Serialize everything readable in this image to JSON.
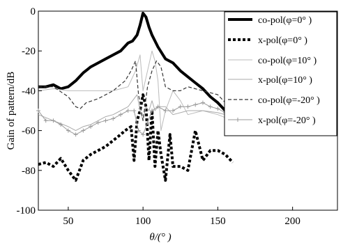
{
  "chart_data": {
    "type": "line",
    "title": "",
    "xlabel": "θ/(° )",
    "ylabel": "Gain of pattern/dB",
    "xlim": [
      30,
      230
    ],
    "ylim": [
      -100,
      0
    ],
    "xticks": [
      50,
      100,
      150,
      200
    ],
    "yticks": [
      0,
      -20,
      -40,
      -60,
      -80,
      -100
    ],
    "grid": false,
    "legend_position": "top-right",
    "series": [
      {
        "name": "co-pol(φ=0°)",
        "color": "#000000",
        "style": "solid-thick",
        "x": [
          30,
          35,
          40,
          45,
          50,
          55,
          60,
          65,
          70,
          75,
          80,
          85,
          90,
          93,
          96,
          98,
          100,
          102,
          104,
          106,
          108,
          110,
          115,
          120,
          125,
          130,
          135,
          140,
          145,
          150,
          155,
          160
        ],
        "y": [
          -38,
          -38,
          -37,
          -39,
          -38,
          -35,
          -31,
          -28,
          -26,
          -24,
          -22,
          -20,
          -16,
          -15,
          -12,
          -7,
          -1,
          -3,
          -8,
          -12,
          -15,
          -18,
          -24,
          -26,
          -30,
          -33,
          -36,
          -39,
          -43,
          -46,
          -50,
          -51
        ]
      },
      {
        "name": "x-pol(φ=0°)",
        "color": "#000000",
        "style": "dotted-thick",
        "x": [
          30,
          35,
          40,
          45,
          50,
          55,
          60,
          65,
          70,
          75,
          80,
          85,
          88,
          92,
          94,
          96,
          98,
          100,
          102,
          104,
          106,
          108,
          110,
          112,
          115,
          118,
          120,
          125,
          130,
          135,
          140,
          145,
          150,
          155,
          160
        ],
        "y": [
          -77,
          -76,
          -78,
          -74,
          -80,
          -85,
          -75,
          -72,
          -70,
          -68,
          -65,
          -62,
          -60,
          -58,
          -75,
          -55,
          -50,
          -42,
          -48,
          -75,
          -50,
          -78,
          -60,
          -72,
          -85,
          -62,
          -78,
          -78,
          -80,
          -60,
          -75,
          -70,
          -70,
          -72,
          -76
        ]
      },
      {
        "name": "co-pol(φ=10°)",
        "color": "#bbbbbb",
        "style": "solid-thin",
        "x": [
          30,
          40,
          50,
          60,
          70,
          80,
          90,
          95,
          98,
          100,
          103,
          106,
          108,
          110,
          112,
          115,
          120,
          125,
          130,
          140,
          150,
          160
        ],
        "y": [
          -40,
          -39,
          -40,
          -40,
          -40,
          -40,
          -38,
          -30,
          -22,
          -40,
          -30,
          -20,
          -25,
          -35,
          -60,
          -50,
          -40,
          -45,
          -52,
          -50,
          -52,
          -55
        ]
      },
      {
        "name": "x-pol(φ=10°)",
        "color": "#aaaaaa",
        "style": "solid-thin",
        "x": [
          30,
          40,
          50,
          55,
          60,
          65,
          70,
          75,
          80,
          85,
          90,
          93,
          96,
          98,
          100,
          102,
          104,
          106,
          108,
          110,
          115,
          120,
          130,
          140,
          150,
          160
        ],
        "y": [
          -52,
          -55,
          -58,
          -60,
          -58,
          -57,
          -55,
          -53,
          -52,
          -50,
          -48,
          -45,
          -42,
          -50,
          -55,
          -48,
          -50,
          -45,
          -50,
          -48,
          -48,
          -52,
          -50,
          -50,
          -51,
          -53
        ]
      },
      {
        "name": "co-pol(φ=-20°)",
        "color": "#333333",
        "style": "dashed",
        "x": [
          30,
          40,
          50,
          55,
          58,
          62,
          70,
          80,
          88,
          92,
          95,
          97,
          100,
          103,
          106,
          109,
          112,
          115,
          120,
          125,
          130,
          140,
          150,
          160
        ],
        "y": [
          -38,
          -38,
          -43,
          -48,
          -49,
          -46,
          -44,
          -40,
          -35,
          -30,
          -25,
          -42,
          -55,
          -38,
          -30,
          -25,
          -28,
          -38,
          -40,
          -40,
          -38,
          -40,
          -42,
          -50
        ]
      },
      {
        "name": "x-pol(φ=-20°)",
        "color": "#999999",
        "style": "plus-markers",
        "x": [
          30,
          35,
          40,
          45,
          50,
          55,
          60,
          65,
          70,
          75,
          80,
          85,
          90,
          94,
          97,
          100,
          103,
          106,
          110,
          115,
          120,
          125,
          130,
          135,
          140,
          145,
          150,
          155,
          160
        ],
        "y": [
          -50,
          -55,
          -55,
          -57,
          -60,
          -62,
          -60,
          -58,
          -56,
          -55,
          -54,
          -52,
          -50,
          -50,
          -60,
          -62,
          -56,
          -50,
          -48,
          -50,
          -50,
          -48,
          -48,
          -47,
          -46,
          -48,
          -49,
          -51,
          -52
        ]
      }
    ]
  },
  "legend": {
    "items": [
      "co-pol(φ=0° )",
      "x-pol(φ=0° )",
      "co-pol(φ=10° )",
      "x-pol(φ=10° )",
      "co-pol(φ=-20° )",
      "x-pol(φ=-20° )"
    ]
  },
  "axes": {
    "xlabel": "θ/(° )",
    "ylabel": "Gain of pattern/dB",
    "xtick_labels": [
      "50",
      "100",
      "150",
      "200"
    ],
    "ytick_labels": [
      "0",
      "-20",
      "-40",
      "-60",
      "-80",
      "-100"
    ]
  }
}
